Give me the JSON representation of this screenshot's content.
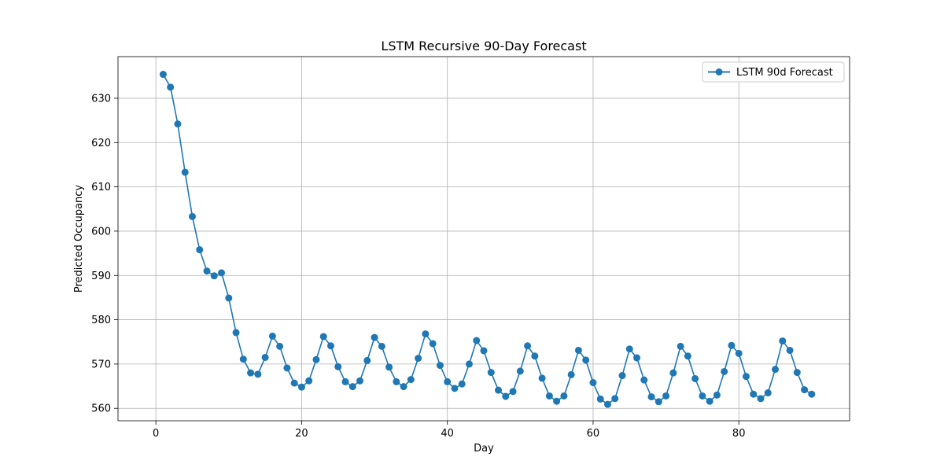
{
  "chart_data": {
    "type": "line",
    "title": "LSTM Recursive 90-Day Forecast",
    "xlabel": "Day",
    "ylabel": "Predicted Occupancy",
    "xlim": [
      -5.2,
      95.2
    ],
    "ylim": [
      557.2,
      639.4
    ],
    "xticks": [
      0,
      20,
      40,
      60,
      80
    ],
    "yticks": [
      560,
      570,
      580,
      590,
      600,
      610,
      620,
      630
    ],
    "grid": true,
    "legend_position": "top-right",
    "colors": {
      "series": "#1f77b4"
    },
    "series": [
      {
        "name": "LSTM 90d Forecast",
        "marker": "circle",
        "x": [
          1,
          2,
          3,
          4,
          5,
          6,
          7,
          8,
          9,
          10,
          11,
          12,
          13,
          14,
          15,
          16,
          17,
          18,
          19,
          20,
          21,
          22,
          23,
          24,
          25,
          26,
          27,
          28,
          29,
          30,
          31,
          32,
          33,
          34,
          35,
          36,
          37,
          38,
          39,
          40,
          41,
          42,
          43,
          44,
          45,
          46,
          47,
          48,
          49,
          50,
          51,
          52,
          53,
          54,
          55,
          56,
          57,
          58,
          59,
          60,
          61,
          62,
          63,
          64,
          65,
          66,
          67,
          68,
          69,
          70,
          71,
          72,
          73,
          74,
          75,
          76,
          77,
          78,
          79,
          80,
          81,
          82,
          83,
          84,
          85,
          86,
          87,
          88,
          89,
          90
        ],
        "values": [
          635.4,
          632.5,
          624.2,
          613.3,
          603.3,
          595.8,
          591.0,
          589.9,
          590.6,
          584.9,
          577.1,
          571.1,
          568.0,
          567.7,
          571.5,
          576.3,
          574.0,
          569.1,
          565.7,
          564.8,
          566.2,
          571.0,
          576.2,
          574.1,
          569.4,
          566.0,
          564.9,
          566.2,
          570.8,
          576.0,
          574.0,
          569.3,
          566.0,
          564.9,
          566.5,
          571.3,
          576.8,
          574.6,
          569.7,
          566.0,
          564.5,
          565.5,
          570.0,
          575.3,
          573.0,
          568.1,
          564.1,
          562.7,
          563.8,
          568.4,
          574.1,
          571.8,
          566.8,
          562.8,
          561.6,
          562.8,
          567.6,
          573.1,
          570.9,
          565.8,
          562.1,
          560.9,
          562.2,
          567.4,
          573.4,
          571.4,
          566.4,
          562.6,
          561.5,
          562.8,
          568.0,
          574.0,
          571.8,
          566.7,
          562.8,
          561.6,
          563.0,
          568.3,
          574.2,
          572.4,
          567.2,
          563.2,
          562.2,
          563.5,
          568.8,
          575.2,
          573.1,
          568.1,
          564.2,
          563.2
        ]
      }
    ]
  }
}
